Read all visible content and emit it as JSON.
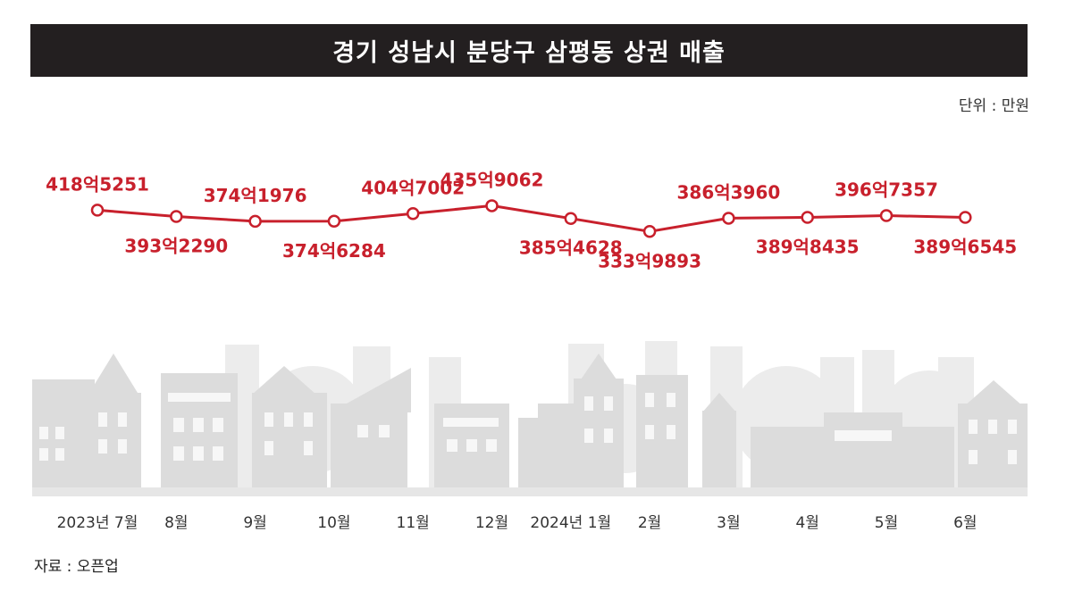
{
  "chart_data": {
    "type": "line",
    "title": "경기 성남시 분당구 삼평동 상권 매출",
    "unit_note": "단위 : 만원",
    "source": "자료 : 오픈업",
    "x": [
      "2023년 7월",
      "8월",
      "9월",
      "10월",
      "11월",
      "12월",
      "2024년 1월",
      "2월",
      "3월",
      "4월",
      "5월",
      "6월"
    ],
    "series": [
      {
        "values": [
          4185251,
          3932290,
          3741976,
          3746284,
          4047002,
          4359062,
          3854628,
          3339893,
          3863960,
          3898435,
          3967357,
          3896545
        ],
        "labels": [
          "418억5251",
          "393억2290",
          "374억1976",
          "374억6284",
          "404억7002",
          "435억9062",
          "385억4628",
          "333억9893",
          "386억3960",
          "389억8435",
          "396억7357",
          "389억6545"
        ],
        "label_positions": [
          "above",
          "below",
          "above",
          "below",
          "above",
          "above",
          "below",
          "below",
          "above",
          "below",
          "above",
          "below"
        ]
      }
    ],
    "line_color": "#c8202c",
    "grid": false
  }
}
